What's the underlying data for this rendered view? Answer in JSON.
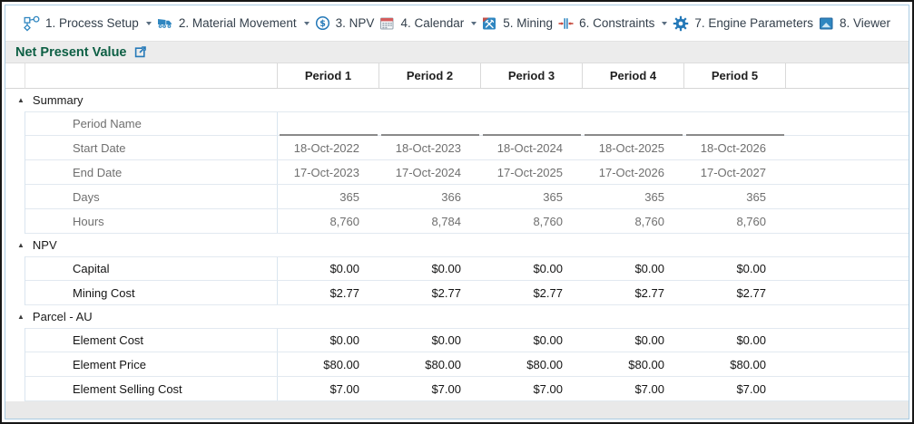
{
  "toolbar": {
    "items": [
      {
        "label": "1. Process Setup",
        "icon": "process-setup-icon",
        "has_dropdown": true
      },
      {
        "label": "2. Material Movement",
        "icon": "material-movement-icon",
        "has_dropdown": true
      },
      {
        "label": "3. NPV",
        "icon": "npv-icon",
        "has_dropdown": false
      },
      {
        "label": "4. Calendar",
        "icon": "calendar-icon",
        "has_dropdown": true
      },
      {
        "label": "5. Mining",
        "icon": "mining-icon",
        "has_dropdown": false
      },
      {
        "label": "6. Constraints",
        "icon": "constraints-icon",
        "has_dropdown": true
      },
      {
        "label": "7. Engine Parameters",
        "icon": "engine-parameters-icon",
        "has_dropdown": false
      },
      {
        "label": "8. Viewer",
        "icon": "viewer-icon",
        "has_dropdown": false
      }
    ]
  },
  "panel": {
    "title": "Net Present Value",
    "popout_icon": "open-in-new-window-icon"
  },
  "table": {
    "column_headers": [
      "Period 1",
      "Period 2",
      "Period 3",
      "Period 4",
      "Period 5"
    ],
    "groups": [
      {
        "name": "Summary",
        "collapsed": false,
        "rows": [
          {
            "label": "Period Name",
            "muted": true,
            "editable": true,
            "underline": true,
            "values": [
              "",
              "",
              "",
              "",
              ""
            ]
          },
          {
            "label": "Start Date",
            "muted": true,
            "editable": false,
            "underline": false,
            "values": [
              "18-Oct-2022",
              "18-Oct-2023",
              "18-Oct-2024",
              "18-Oct-2025",
              "18-Oct-2026"
            ]
          },
          {
            "label": "End Date",
            "muted": true,
            "editable": false,
            "underline": false,
            "values": [
              "17-Oct-2023",
              "17-Oct-2024",
              "17-Oct-2025",
              "17-Oct-2026",
              "17-Oct-2027"
            ]
          },
          {
            "label": "Days",
            "muted": true,
            "editable": false,
            "underline": false,
            "values": [
              "365",
              "366",
              "365",
              "365",
              "365"
            ]
          },
          {
            "label": "Hours",
            "muted": true,
            "editable": false,
            "underline": false,
            "values": [
              "8,760",
              "8,784",
              "8,760",
              "8,760",
              "8,760"
            ]
          }
        ]
      },
      {
        "name": "NPV",
        "collapsed": false,
        "rows": [
          {
            "label": "Capital",
            "muted": false,
            "editable": true,
            "underline": false,
            "values": [
              "$0.00",
              "$0.00",
              "$0.00",
              "$0.00",
              "$0.00"
            ]
          },
          {
            "label": "Mining Cost",
            "muted": false,
            "editable": true,
            "underline": false,
            "values": [
              "$2.77",
              "$2.77",
              "$2.77",
              "$2.77",
              "$2.77"
            ]
          }
        ]
      },
      {
        "name": "Parcel - AU",
        "collapsed": false,
        "rows": [
          {
            "label": "Element Cost",
            "muted": false,
            "editable": true,
            "underline": false,
            "values": [
              "$0.00",
              "$0.00",
              "$0.00",
              "$0.00",
              "$0.00"
            ]
          },
          {
            "label": "Element Price",
            "muted": false,
            "editable": true,
            "underline": false,
            "values": [
              "$80.00",
              "$80.00",
              "$80.00",
              "$80.00",
              "$80.00"
            ]
          },
          {
            "label": "Element Selling Cost",
            "muted": false,
            "editable": true,
            "underline": false,
            "values": [
              "$7.00",
              "$7.00",
              "$7.00",
              "$7.00",
              "$7.00"
            ]
          }
        ]
      }
    ]
  },
  "colors": {
    "accent_blue": "#2579b8",
    "title_green": "#0d5f44",
    "calendar_red": "#d45c5c",
    "constraint_red": "#c0392b",
    "toolbar_text": "#333f4b",
    "muted_text": "#6f6f6f",
    "grid_line": "#e2e9f0"
  }
}
